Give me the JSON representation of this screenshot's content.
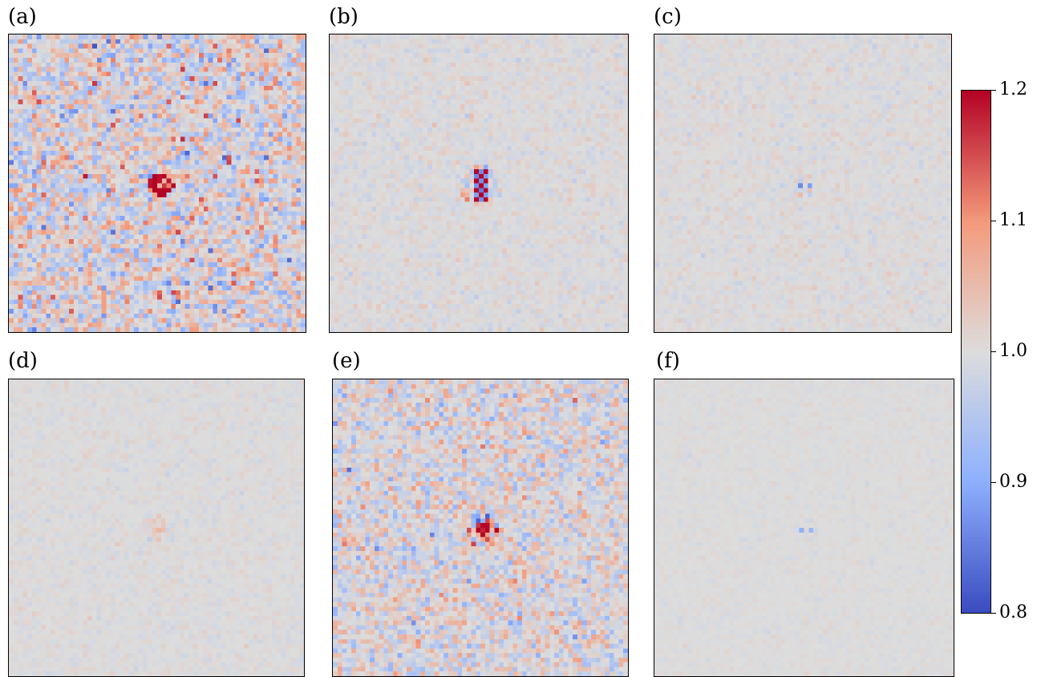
{
  "chart_data": {
    "type": "heatmap",
    "colormap": "coolwarm",
    "vmin": 0.8,
    "vmax": 1.2,
    "grid_size": 64,
    "panels": [
      {
        "label": "(a)",
        "noise": 0.055,
        "hotspot": {
          "peak": 0.23,
          "shape": "ring"
        }
      },
      {
        "label": "(b)",
        "noise": 0.012,
        "hotspot": {
          "peak": 0.22,
          "shape": "checker"
        }
      },
      {
        "label": "(c)",
        "noise": 0.01,
        "hotspot": {
          "peak": -0.13,
          "shape": "pair"
        }
      },
      {
        "label": "(d)",
        "noise": 0.008,
        "hotspot": {
          "peak": 0.04,
          "shape": "blob"
        }
      },
      {
        "label": "(e)",
        "noise": 0.04,
        "hotspot": {
          "peak": 0.25,
          "shape": "blob"
        }
      },
      {
        "label": "(f)",
        "noise": 0.005,
        "hotspot": {
          "peak": -0.1,
          "shape": "pair"
        }
      }
    ],
    "colorbar": {
      "ticks": [
        "1.2",
        "1.1",
        "1.0",
        "0.9",
        "0.8"
      ],
      "tick_values": [
        1.2,
        1.1,
        1.0,
        0.9,
        0.8
      ]
    }
  }
}
